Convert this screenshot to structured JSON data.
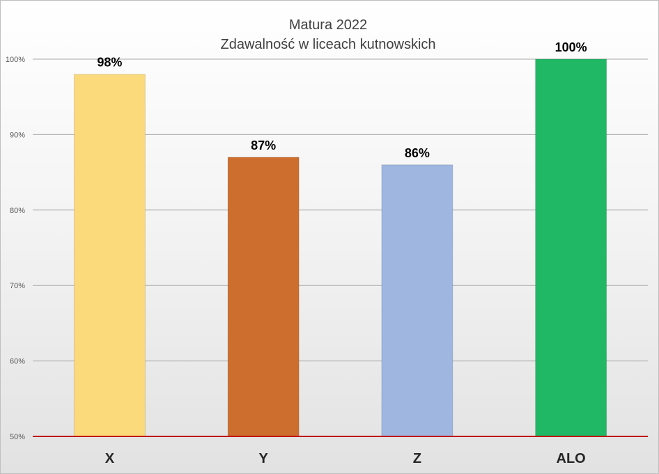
{
  "chart_data": {
    "type": "bar",
    "title": "Matura 2022",
    "subtitle": "Zdawalność w liceach kutnowskich",
    "categories": [
      "X",
      "Y",
      "Z",
      "ALO"
    ],
    "values": [
      98,
      87,
      86,
      100
    ],
    "data_labels": [
      "98%",
      "87%",
      "86%",
      "100%"
    ],
    "colors": [
      "#fada7a",
      "#cd6e2f",
      "#9eb6e0",
      "#20b865"
    ],
    "ylim": [
      50,
      100
    ],
    "yticks": [
      50,
      60,
      70,
      80,
      90,
      100
    ],
    "ytick_labels": [
      "50%",
      "60%",
      "70%",
      "80%",
      "90%",
      "100%"
    ],
    "grid": true,
    "baseline_color": "#c00000",
    "xlabel": "",
    "ylabel": ""
  }
}
